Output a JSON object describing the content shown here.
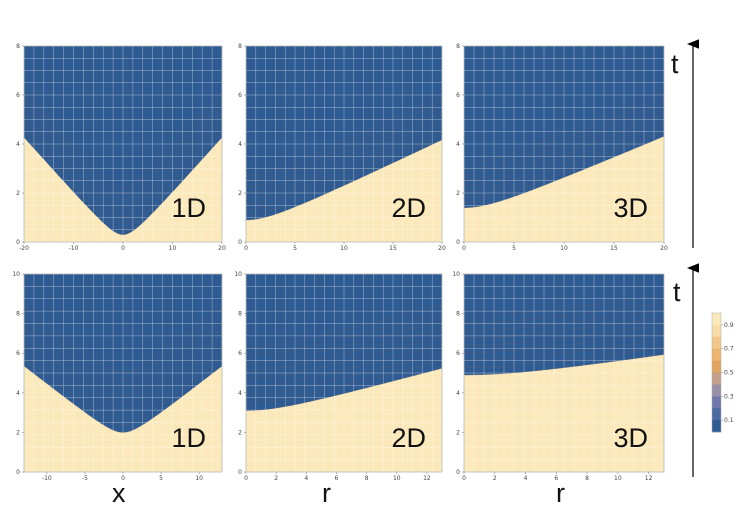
{
  "colors": {
    "scale": [
      "#2f5b93",
      "#4a6aa1",
      "#7079ad",
      "#9a8fa9",
      "#c7a08a",
      "#e2a55f",
      "#ecb46c",
      "#f2c88a",
      "#f7dca8",
      "#fbe9bb"
    ],
    "grid": "#ffffff",
    "contour_line": "#5a5a6e"
  },
  "colorbar": {
    "ticks": [
      "0.9",
      "0.7",
      "0.5",
      "0.3",
      "0.1"
    ]
  },
  "labels": {
    "row_axis": [
      "t",
      "t"
    ],
    "column_axis": [
      "x",
      "r",
      "r"
    ]
  },
  "chart_data": [
    {
      "type": "heatmap",
      "row": 0,
      "col": 0,
      "label": "1D",
      "xrange": [
        -20,
        20
      ],
      "yrange": [
        0,
        8
      ],
      "xticks": [
        "-20",
        "-10",
        "0",
        "10",
        "20"
      ],
      "yticks": [
        "0",
        "2",
        "4",
        "6",
        "8"
      ],
      "symmetric": true,
      "front": {
        "t0": 2.2,
        "speed": 0.3
      },
      "width": 1.9
    },
    {
      "type": "heatmap",
      "row": 0,
      "col": 1,
      "label": "2D",
      "xrange": [
        0,
        20
      ],
      "yrange": [
        0,
        8
      ],
      "xticks": [
        "0",
        "5",
        "10",
        "15",
        "20"
      ],
      "yticks": [
        "0",
        "2",
        "4",
        "6",
        "8"
      ],
      "symmetric": false,
      "front": {
        "t0": 2.7,
        "speed": 0.215
      },
      "width": 1.8
    },
    {
      "type": "heatmap",
      "row": 0,
      "col": 2,
      "label": "3D",
      "xrange": [
        0,
        20
      ],
      "yrange": [
        0,
        8
      ],
      "xticks": [
        "0",
        "5",
        "10",
        "15",
        "20"
      ],
      "yticks": [
        "0",
        "2",
        "4",
        "6",
        "8"
      ],
      "symmetric": false,
      "front": {
        "t0": 3.2,
        "speed": 0.2
      },
      "width": 1.8
    },
    {
      "type": "heatmap",
      "row": 1,
      "col": 0,
      "label": "1D",
      "xrange": [
        -13,
        13
      ],
      "yrange": [
        0,
        10
      ],
      "xticks": [
        "-10",
        "-5",
        "0",
        "5",
        "10"
      ],
      "yticks": [
        "0",
        "2",
        "4",
        "6",
        "8",
        "10"
      ],
      "symmetric": true,
      "front": {
        "t0": 5.0,
        "speed": 0.43
      },
      "width": 3.0
    },
    {
      "type": "heatmap",
      "row": 1,
      "col": 1,
      "label": "2D",
      "xrange": [
        0,
        13
      ],
      "yrange": [
        0,
        10
      ],
      "xticks": [
        "0",
        "2",
        "4",
        "6",
        "8",
        "10",
        "12"
      ],
      "yticks": [
        "0",
        "2",
        "4",
        "6",
        "8",
        "10"
      ],
      "symmetric": false,
      "front": {
        "t0": 6.3,
        "speed": 0.3
      },
      "width": 3.2
    },
    {
      "type": "heatmap",
      "row": 1,
      "col": 2,
      "label": "3D",
      "xrange": [
        0,
        13
      ],
      "yrange": [
        0,
        10
      ],
      "xticks": [
        "0",
        "2",
        "4",
        "6",
        "8",
        "10",
        "12"
      ],
      "yticks": [
        "0",
        "2",
        "4",
        "6",
        "8",
        "10"
      ],
      "symmetric": false,
      "front": {
        "t0": 7.9,
        "speed": 0.17
      },
      "width": 3.0
    }
  ]
}
